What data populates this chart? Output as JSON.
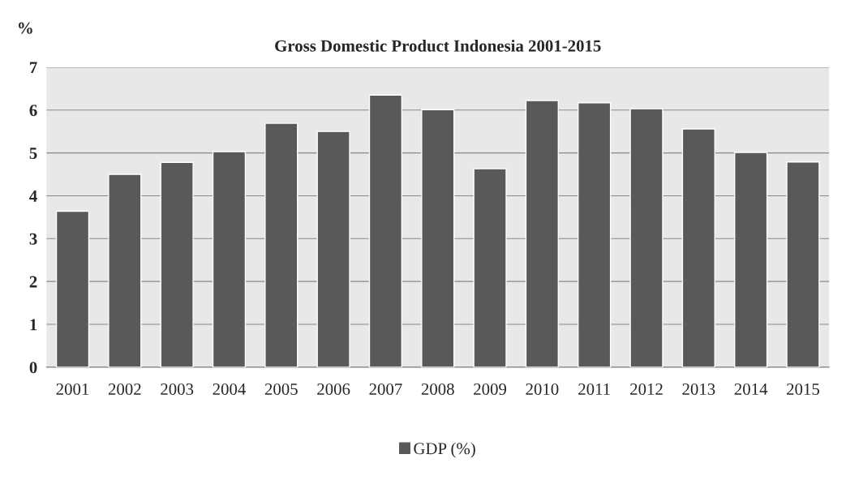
{
  "chart_data": {
    "type": "bar",
    "title": "Gross Domestic Product Indonesia 2001-2015",
    "ylabel": "%",
    "categories": [
      "2001",
      "2002",
      "2003",
      "2004",
      "2005",
      "2006",
      "2007",
      "2008",
      "2009",
      "2010",
      "2011",
      "2012",
      "2013",
      "2014",
      "2015"
    ],
    "series": [
      {
        "name": "GDP (%)",
        "color": "#595959",
        "values": [
          3.64,
          4.5,
          4.78,
          5.03,
          5.69,
          5.5,
          6.35,
          6.01,
          4.63,
          6.22,
          6.17,
          6.03,
          5.56,
          5.01,
          4.79
        ]
      }
    ],
    "ylim": [
      0,
      7
    ],
    "yticks": [
      0,
      1,
      2,
      3,
      4,
      5,
      6,
      7
    ],
    "grid": "y",
    "legend": "bottom"
  }
}
